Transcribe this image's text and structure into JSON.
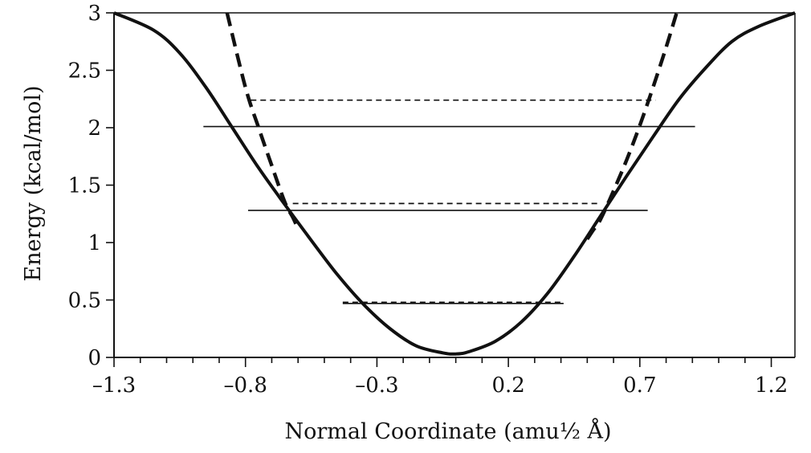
{
  "chart_data": {
    "type": "line",
    "title": "",
    "xlabel": "Normal Coordinate (amu½ Å)",
    "ylabel": "Energy (kcal/mol)",
    "xlim": [
      -1.3,
      1.29
    ],
    "ylim": [
      0,
      3
    ],
    "x_ticks": [
      -1.3,
      -0.8,
      -0.3,
      0.2,
      0.7,
      1.2
    ],
    "x_tick_labels": [
      "–1.3",
      "–0.8",
      "–0.3",
      "0.2",
      "0.7",
      "1.2"
    ],
    "x_minor_step": 0.1,
    "y_ticks": [
      0,
      0.5,
      1,
      1.5,
      2,
      2.5,
      3
    ],
    "y_tick_labels": [
      "0",
      "0.5",
      "1",
      "1.5",
      "2",
      "2.5",
      "3"
    ],
    "grid": false,
    "legend": "none",
    "series": [
      {
        "style": "solid",
        "color": "#111111",
        "x": [
          -1.3,
          -1.15,
          -1.05,
          -0.95,
          -0.85,
          -0.75,
          -0.65,
          -0.55,
          -0.45,
          -0.35,
          -0.25,
          -0.15,
          -0.05,
          0.0,
          0.05,
          0.15,
          0.25,
          0.35,
          0.45,
          0.55,
          0.65,
          0.75,
          0.85,
          0.95,
          1.05,
          1.15,
          1.29
        ],
        "y": [
          3.0,
          2.85,
          2.65,
          2.35,
          2.0,
          1.65,
          1.33,
          1.02,
          0.72,
          0.46,
          0.25,
          0.1,
          0.04,
          0.03,
          0.05,
          0.14,
          0.31,
          0.56,
          0.88,
          1.23,
          1.58,
          1.92,
          2.25,
          2.52,
          2.75,
          2.88,
          3.0
        ]
      },
      {
        "style": "dashed",
        "color": "#111111",
        "x": [
          -0.87,
          -0.8,
          -0.75,
          -0.7,
          -0.65,
          -0.62,
          -0.6
        ],
        "y": [
          3.0,
          2.35,
          2.0,
          1.67,
          1.35,
          1.22,
          1.12
        ]
      },
      {
        "style": "dashed",
        "color": "#111111",
        "x": [
          0.5,
          0.52,
          0.55,
          0.6,
          0.65,
          0.7,
          0.75,
          0.8,
          0.84
        ],
        "y": [
          1.03,
          1.1,
          1.2,
          1.45,
          1.72,
          2.02,
          2.35,
          2.7,
          3.0
        ]
      }
    ],
    "energy_levels": [
      {
        "style": "solid",
        "y": 0.47,
        "x_start": -0.43,
        "x_end": 0.41
      },
      {
        "style": "dashed",
        "y": 0.48,
        "x_start": -0.43,
        "x_end": 0.41
      },
      {
        "style": "solid",
        "y": 1.28,
        "x_start": -0.79,
        "x_end": 0.73
      },
      {
        "style": "dashed",
        "y": 1.34,
        "x_start": -0.62,
        "x_end": 0.55
      },
      {
        "style": "solid",
        "y": 2.01,
        "x_start": -0.96,
        "x_end": 0.91
      },
      {
        "style": "dashed",
        "y": 2.24,
        "x_start": -0.78,
        "x_end": 0.76
      }
    ]
  }
}
